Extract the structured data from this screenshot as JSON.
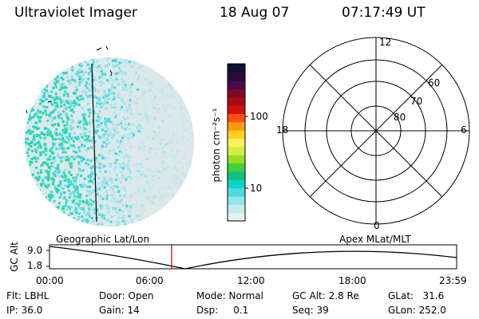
{
  "header": {
    "instrument": "Ultraviolet Imager",
    "date": "18 Aug 07",
    "time": "07:17:49 UT"
  },
  "colorbar": {
    "unit_label": "photon cm⁻²s⁻¹",
    "ticks": [
      "100",
      "10"
    ],
    "colors": [
      "#101030",
      "#2a0a3a",
      "#4a0a4a",
      "#7a0a2a",
      "#a80a10",
      "#d01010",
      "#ff5010",
      "#ff9a10",
      "#ffd020",
      "#f8f060",
      "#d0f040",
      "#90e020",
      "#40d040",
      "#10c080",
      "#10d0c8",
      "#50d8e0",
      "#90e4ec",
      "#c0ecf0",
      "#e0f0f0"
    ]
  },
  "polar_grid": {
    "mlt_labels": {
      "top": "12",
      "left": "18",
      "right": "6",
      "bottom": "0"
    },
    "lat_labels": [
      "60",
      "70",
      "80"
    ]
  },
  "timeline": {
    "left_title": "Geographic Lat/Lon",
    "right_title": "Apex MLat/MLT",
    "axis_label": "GC Alt",
    "y_ticks": [
      "9.0",
      "1.8"
    ],
    "x_ticks": [
      "00:00",
      "06:00",
      "12:00",
      "18:00",
      "23:59"
    ]
  },
  "status": {
    "flt": "Flt: LBHL",
    "ip": "IP: 36.0",
    "door": "Door: Open",
    "gain": "Gain: 14",
    "mode": "Mode: Normal",
    "dsp": "Dsp:     0.1",
    "gc_alt": "GC Alt: 2.8 Re",
    "seq": "Seq: 39",
    "glat": "GLat:   31.6",
    "glon": "GLon: 252.0"
  }
}
